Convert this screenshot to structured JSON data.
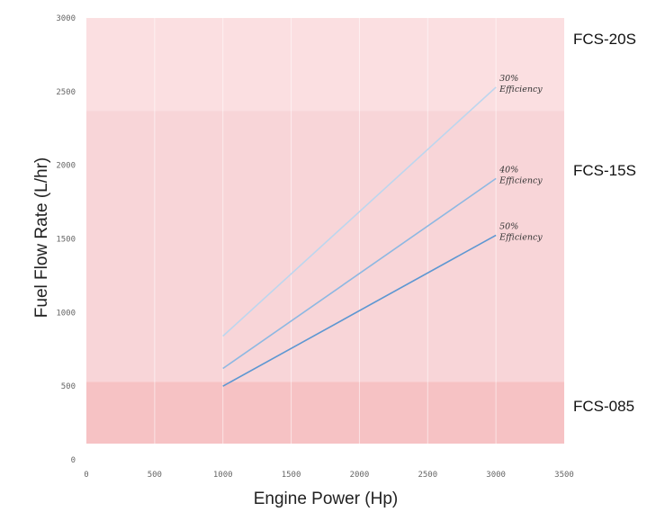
{
  "chart_data": {
    "type": "line",
    "title": "",
    "xlabel": "Engine Power (Hp)",
    "ylabel": "Fuel Flow Rate (L/hr)",
    "xlim": [
      0,
      3500
    ],
    "ylim": [
      0,
      3000
    ],
    "x_ticks": [
      "0",
      "500",
      "1000",
      "1500",
      "2000",
      "2500",
      "3000",
      "3500"
    ],
    "y_ticks": [
      "0",
      "500",
      "1000",
      "1500",
      "2000",
      "2500",
      "3000"
    ],
    "grid": true,
    "bands": [
      {
        "name": "FCS-20S",
        "y_from": 2370,
        "y_to": 3000,
        "color": "#fbdfe1"
      },
      {
        "name": "FCS-15S",
        "y_from": 530,
        "y_to": 2370,
        "color": "#f8d5d8"
      },
      {
        "name": "FCS-085",
        "y_from": 110,
        "y_to": 530,
        "color": "#f6c2c4"
      }
    ],
    "series": [
      {
        "label_line1": "30%",
        "label_line2": "Efficiency",
        "color": "#bcd6ee",
        "x": [
          1000,
          3000
        ],
        "y": [
          840,
          2530
        ]
      },
      {
        "label_line1": "40%",
        "label_line2": "Efficiency",
        "color": "#8db8e2",
        "x": [
          1000,
          3000
        ],
        "y": [
          620,
          1910
        ]
      },
      {
        "label_line1": "50%",
        "label_line2": "Efficiency",
        "color": "#5d97d2",
        "x": [
          1000,
          3000
        ],
        "y": [
          500,
          1525
        ]
      }
    ]
  }
}
